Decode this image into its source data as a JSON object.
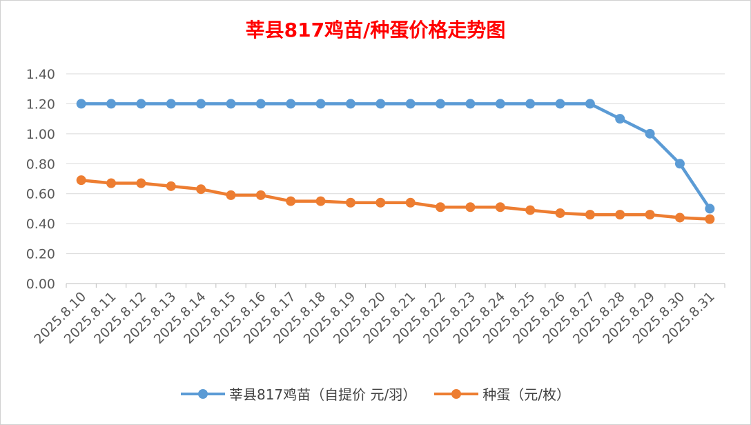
{
  "chart_data": {
    "type": "line",
    "title": "莘县817鸡苗/种蛋价格走势图",
    "categories": [
      "2025.8.10",
      "2025.8.11",
      "2025.8.12",
      "2025.8.13",
      "2025.8.14",
      "2025.8.15",
      "2025.8.16",
      "2025.8.17",
      "2025.8.18",
      "2025.8.19",
      "2025.8.20",
      "2025.8.21",
      "2025.8.22",
      "2025.8.23",
      "2025.8.24",
      "2025.8.25",
      "2025.8.26",
      "2025.8.27",
      "2025.8.28",
      "2025.8.29",
      "2025.8.30",
      "2025.8.31"
    ],
    "series": [
      {
        "name": "莘县817鸡苗（自提价 元/羽）",
        "color": "#5b9bd5",
        "values": [
          1.2,
          1.2,
          1.2,
          1.2,
          1.2,
          1.2,
          1.2,
          1.2,
          1.2,
          1.2,
          1.2,
          1.2,
          1.2,
          1.2,
          1.2,
          1.2,
          1.2,
          1.2,
          1.1,
          1.0,
          0.8,
          0.5
        ]
      },
      {
        "name": "种蛋（元/枚）",
        "color": "#ed7d31",
        "values": [
          0.69,
          0.67,
          0.67,
          0.65,
          0.63,
          0.59,
          0.59,
          0.55,
          0.55,
          0.54,
          0.54,
          0.54,
          0.51,
          0.51,
          0.51,
          0.49,
          0.47,
          0.46,
          0.46,
          0.46,
          0.44,
          0.43
        ]
      }
    ],
    "ylim": [
      0,
      1.4
    ],
    "yticks": [
      "0.00",
      "0.20",
      "0.40",
      "0.60",
      "0.80",
      "1.00",
      "1.20",
      "1.40"
    ],
    "grid": true,
    "legend_position": "bottom",
    "title_color": "#ff0000"
  }
}
